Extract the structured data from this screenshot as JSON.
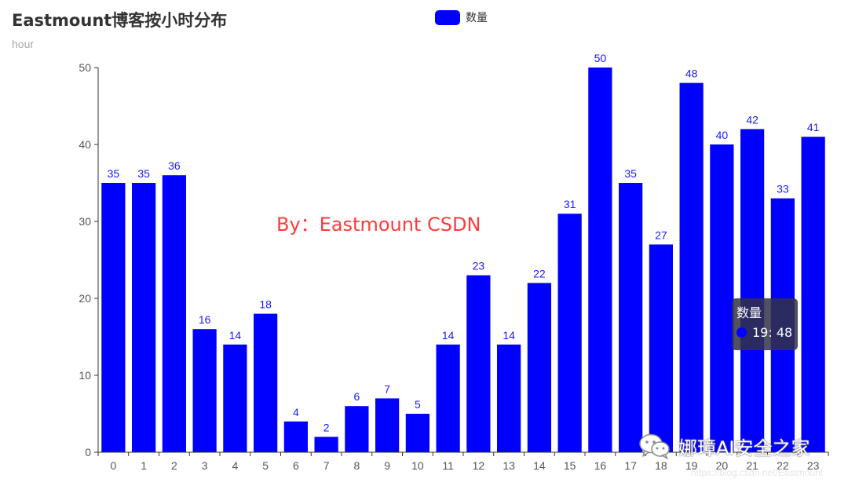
{
  "chart_data": {
    "type": "bar",
    "title": "Eastmount博客按小时分布",
    "subtitle": "hour",
    "categories": [
      "0",
      "1",
      "2",
      "3",
      "4",
      "5",
      "6",
      "7",
      "8",
      "9",
      "10",
      "11",
      "12",
      "13",
      "14",
      "15",
      "16",
      "17",
      "18",
      "19",
      "20",
      "21",
      "22",
      "23"
    ],
    "series": [
      {
        "name": "数量",
        "color": "#0000ff",
        "values": [
          35,
          35,
          36,
          16,
          14,
          18,
          4,
          2,
          6,
          7,
          5,
          14,
          23,
          14,
          22,
          31,
          50,
          35,
          27,
          48,
          40,
          42,
          33,
          41
        ]
      }
    ],
    "ylim": [
      0,
      50
    ],
    "yticks": [
      "0",
      "10",
      "20",
      "30",
      "40",
      "50"
    ],
    "grid": false,
    "legend_position": "top-center",
    "data_label_color": "#1a1aff"
  },
  "overlay": {
    "watermark": "By：Eastmount CSDN",
    "watermark_color": "#ff3b3b"
  },
  "tooltip": {
    "title": "数量",
    "text": "19: 48"
  },
  "footer": {
    "wechat_icon": "wechat-icon",
    "wechat_text": "娜璋AI安全之家",
    "url": "https://blog.csdn.net/Eastmount"
  }
}
